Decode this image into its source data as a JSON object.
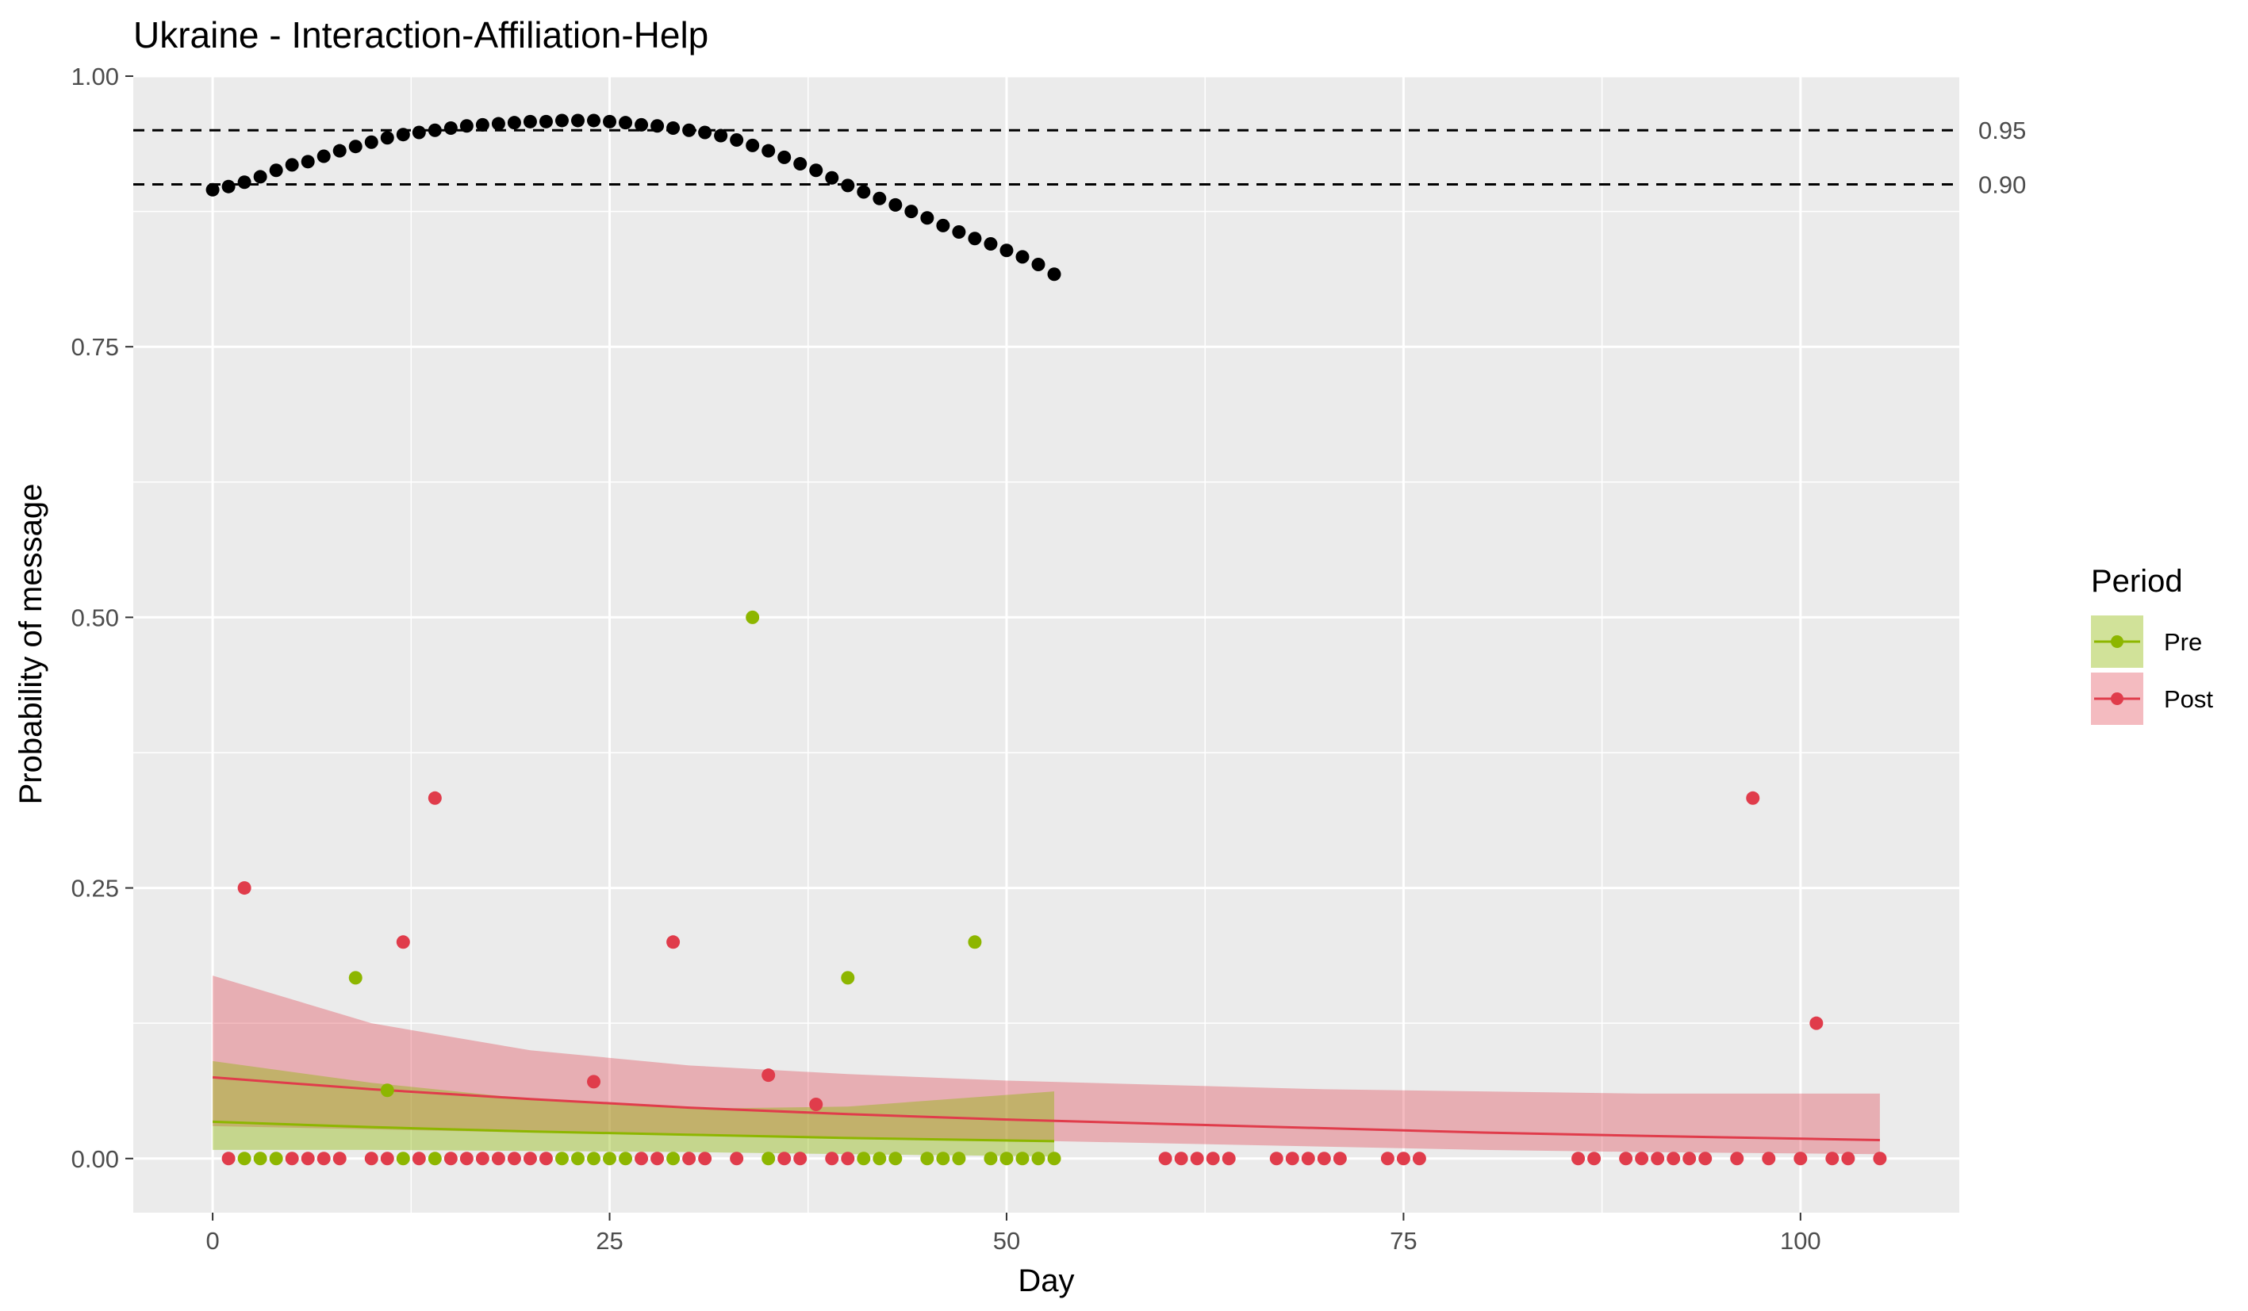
{
  "chart_data": {
    "type": "scatter",
    "title": "Ukraine - Interaction-Affiliation-Help",
    "xlabel": "Day",
    "ylabel": "Probability of message",
    "xlim": [
      -5,
      110
    ],
    "ylim": [
      -0.05,
      1.0
    ],
    "x_ticks": [
      0,
      25,
      50,
      75,
      100
    ],
    "y_ticks": [
      0.0,
      0.25,
      0.5,
      0.75,
      1.0
    ],
    "x_tick_labels": [
      "0",
      "25",
      "50",
      "75",
      "100"
    ],
    "y_tick_labels": [
      "0.00",
      "0.25",
      "0.50",
      "0.75",
      "1.00"
    ],
    "grid": true,
    "reference_lines": [
      {
        "y": 0.95,
        "label": "0.95",
        "style": "dashed"
      },
      {
        "y": 0.9,
        "label": "0.90",
        "style": "dashed"
      }
    ],
    "legend": {
      "title": "Period",
      "position": "right"
    },
    "colors": {
      "pre": "#8db600",
      "post": "#e03c4b",
      "confidence": "#000000"
    },
    "confidence_series": {
      "x": [
        0,
        1,
        2,
        3,
        4,
        5,
        6,
        7,
        8,
        9,
        10,
        11,
        12,
        13,
        14,
        15,
        16,
        17,
        18,
        19,
        20,
        21,
        22,
        23,
        24,
        25,
        26,
        27,
        28,
        29,
        30,
        31,
        32,
        33,
        34,
        35,
        36,
        37,
        38,
        39,
        40,
        41,
        42,
        43,
        44,
        45,
        46,
        47,
        48,
        49,
        50,
        51,
        52,
        53
      ],
      "y": [
        0.895,
        0.898,
        0.902,
        0.907,
        0.913,
        0.918,
        0.921,
        0.926,
        0.931,
        0.935,
        0.939,
        0.943,
        0.946,
        0.948,
        0.95,
        0.952,
        0.954,
        0.955,
        0.956,
        0.957,
        0.958,
        0.958,
        0.959,
        0.959,
        0.959,
        0.958,
        0.957,
        0.955,
        0.954,
        0.952,
        0.95,
        0.948,
        0.945,
        0.941,
        0.936,
        0.931,
        0.925,
        0.919,
        0.913,
        0.906,
        0.899,
        0.893,
        0.887,
        0.881,
        0.875,
        0.869,
        0.862,
        0.856,
        0.85,
        0.845,
        0.839,
        0.833,
        0.826,
        0.817
      ]
    },
    "series": [
      {
        "name": "Pre",
        "points": {
          "x": [
            2,
            3,
            4,
            9,
            11,
            12,
            14,
            22,
            23,
            24,
            25,
            26,
            29,
            34,
            35,
            40,
            41,
            42,
            43,
            45,
            46,
            47,
            48,
            49,
            50,
            51,
            52,
            53
          ],
          "y": [
            0,
            0,
            0,
            0.167,
            0.063,
            0,
            0,
            0,
            0,
            0,
            0,
            0,
            0,
            0.5,
            0,
            0.167,
            0,
            0,
            0,
            0,
            0,
            0,
            0.2,
            0,
            0,
            0,
            0,
            0
          ]
        },
        "fit": {
          "x": [
            0,
            10,
            20,
            30,
            40,
            53
          ],
          "y": [
            0.034,
            0.029,
            0.025,
            0.022,
            0.019,
            0.016
          ],
          "lower": [
            0.008,
            0.008,
            0.007,
            0.006,
            0.004,
            0.002
          ],
          "upper": [
            0.09,
            0.07,
            0.055,
            0.046,
            0.048,
            0.062
          ]
        }
      },
      {
        "name": "Post",
        "points": {
          "x": [
            1,
            2,
            5,
            6,
            7,
            8,
            10,
            11,
            12,
            13,
            14,
            15,
            16,
            17,
            18,
            19,
            20,
            21,
            24,
            27,
            28,
            29,
            30,
            31,
            33,
            35,
            36,
            37,
            38,
            39,
            40,
            60,
            61,
            62,
            63,
            64,
            67,
            68,
            69,
            70,
            71,
            74,
            75,
            76,
            86,
            87,
            89,
            90,
            91,
            92,
            93,
            94,
            96,
            97,
            98,
            100,
            101,
            102,
            103,
            105
          ],
          "y": [
            0,
            0.25,
            0,
            0,
            0,
            0,
            0,
            0,
            0.2,
            0,
            0.333,
            0,
            0,
            0,
            0,
            0,
            0,
            0,
            0.071,
            0,
            0,
            0.2,
            0,
            0,
            0,
            0.077,
            0,
            0,
            0.05,
            0,
            0,
            0,
            0,
            0,
            0,
            0,
            0,
            0,
            0,
            0,
            0,
            0,
            0,
            0,
            0,
            0,
            0,
            0,
            0,
            0,
            0,
            0,
            0,
            0.333,
            0,
            0,
            0.125,
            0,
            0,
            0
          ]
        },
        "fit": {
          "x": [
            0,
            10,
            20,
            30,
            40,
            50,
            60,
            70,
            80,
            90,
            105
          ],
          "y": [
            0.075,
            0.064,
            0.055,
            0.047,
            0.041,
            0.036,
            0.032,
            0.028,
            0.024,
            0.021,
            0.017
          ],
          "lower": [
            0.03,
            0.027,
            0.024,
            0.022,
            0.02,
            0.017,
            0.014,
            0.011,
            0.008,
            0.006,
            0.004
          ],
          "upper": [
            0.169,
            0.125,
            0.1,
            0.086,
            0.078,
            0.072,
            0.068,
            0.064,
            0.062,
            0.06,
            0.06
          ]
        }
      }
    ]
  }
}
